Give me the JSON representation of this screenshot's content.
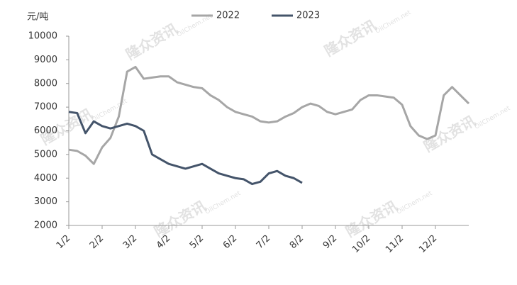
{
  "chart_data": {
    "type": "line",
    "y_label": "元/吨",
    "watermark": "隆众资讯",
    "watermark_site": "OilChem.net",
    "categories": [
      "1/2",
      null,
      null,
      null,
      "2/2",
      null,
      null,
      null,
      "3/2",
      null,
      null,
      null,
      "4/2",
      null,
      null,
      null,
      "5/2",
      null,
      null,
      null,
      "6/2",
      null,
      null,
      null,
      "7/2",
      null,
      null,
      null,
      "8/2",
      null,
      null,
      null,
      "9/2",
      null,
      null,
      null,
      "10/2",
      null,
      null,
      null,
      "11/2",
      null,
      null,
      null,
      "12/2",
      null,
      null,
      null,
      null
    ],
    "series": [
      {
        "name": "2022",
        "color": "#a6a6a6",
        "values": [
          5200,
          5150,
          4950,
          4600,
          5300,
          5700,
          6600,
          8500,
          8700,
          8200,
          8250,
          8300,
          8300,
          8050,
          7950,
          7850,
          7800,
          7500,
          7300,
          7000,
          6800,
          6700,
          6600,
          6400,
          6350,
          6400,
          6600,
          6750,
          7000,
          7150,
          7050,
          6800,
          6700,
          6800,
          6900,
          7300,
          7500,
          7500,
          7450,
          7400,
          7100,
          6200,
          5800,
          5650,
          5800,
          7500,
          7850,
          7500,
          7150
        ]
      },
      {
        "name": "2023",
        "color": "#44546a",
        "values": [
          6800,
          6750,
          5900,
          6400,
          6200,
          6100,
          6200,
          6300,
          6200,
          6000,
          5000,
          4800,
          4600,
          4500,
          4400,
          4500,
          4600,
          4400,
          4200,
          4100,
          4000,
          3950,
          3750,
          3850,
          4200,
          4300,
          4100,
          4000,
          3800,
          null,
          null,
          null,
          null,
          null,
          null,
          null,
          null,
          null,
          null,
          null,
          null,
          null,
          null,
          null,
          null,
          null,
          null,
          null,
          null
        ]
      }
    ],
    "ylim": [
      2000,
      10000
    ],
    "yticks": [
      2000,
      3000,
      4000,
      5000,
      6000,
      7000,
      8000,
      9000,
      10000
    ],
    "grid": false,
    "legend": "top"
  }
}
